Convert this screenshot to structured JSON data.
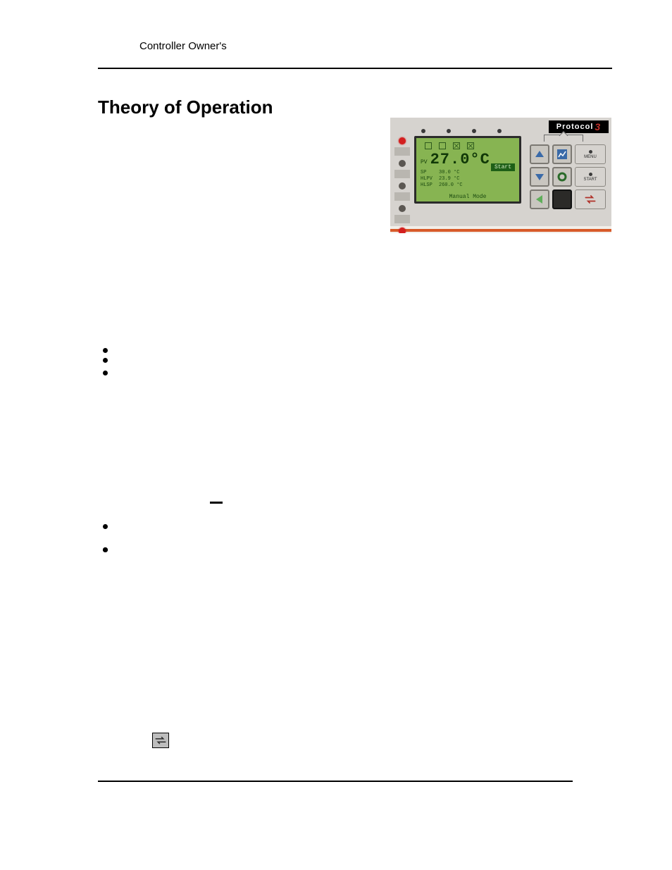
{
  "header": {
    "running_head": "Controller Owner's"
  },
  "title": "Theory of Operation",
  "bullets_group_1": [
    {
      "text": ""
    },
    {
      "text": ""
    },
    {
      "text": ""
    }
  ],
  "bullets_group_2": [
    {
      "text": ""
    },
    {
      "text": ""
    },
    {
      "text": ""
    },
    {
      "text": ""
    }
  ],
  "panel": {
    "brand": "Protocol",
    "brand_accent": "3",
    "lcd": {
      "pv_label": "PV",
      "pv_value": "27.0°C",
      "start_label": "Start",
      "rows": [
        {
          "key": "SP",
          "val": "30.0 °C"
        },
        {
          "key": "HLPV",
          "val": "23.9 °C"
        },
        {
          "key": "HLSP",
          "val": "260.0 °C"
        }
      ],
      "mode": "Manual Mode",
      "top_icon_count": 4,
      "screen_bg": "#87b452",
      "screen_text": "#103807"
    },
    "leds": [
      {
        "color": "red"
      },
      {
        "color": "off"
      },
      {
        "color": "off"
      },
      {
        "color": "off"
      },
      {
        "color": "red"
      },
      {
        "color": "off"
      }
    ],
    "keypad": {
      "keys": [
        {
          "name": "up-key",
          "glyph": "up"
        },
        {
          "name": "graph-key",
          "glyph": "graph"
        },
        {
          "name": "menu-key",
          "glyph": "side",
          "label": "MENU"
        },
        {
          "name": "down-key",
          "glyph": "down"
        },
        {
          "name": "enter-key",
          "glyph": "circle"
        },
        {
          "name": "start-key",
          "glyph": "side",
          "label": "START"
        },
        {
          "name": "left-key",
          "glyph": "left"
        },
        {
          "name": "blank-key",
          "glyph": "dark"
        },
        {
          "name": "cycle-key",
          "glyph": "cycle",
          "label": ""
        }
      ]
    },
    "top_dot_count": 4,
    "colors": {
      "panel_bg": "#d6d3cf",
      "orange_bar": "#d85a2a",
      "led_red": "#d31f1f",
      "led_off": "#5b5752",
      "key_bg": "#c9c6c0",
      "key_border": "#7c7973",
      "brand_bg": "#000000",
      "brand_fg": "#ffffff",
      "brand_accent_fg": "#c0302a"
    }
  },
  "inline_icon": {
    "name": "transfer-icon"
  }
}
